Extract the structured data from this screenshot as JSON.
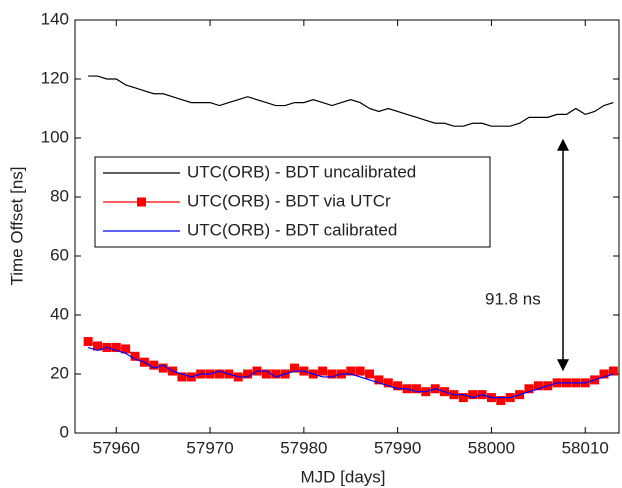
{
  "chart_data": {
    "type": "line",
    "xlabel": "MJD [days]",
    "ylabel": "Time Offset [ns]",
    "annotation": "91.8 ns",
    "x": [
      57957,
      57958,
      57959,
      57960,
      57961,
      57962,
      57963,
      57964,
      57965,
      57966,
      57967,
      57968,
      57969,
      57970,
      57971,
      57972,
      57973,
      57974,
      57975,
      57976,
      57977,
      57978,
      57979,
      57980,
      57981,
      57982,
      57983,
      57984,
      57985,
      57986,
      57987,
      57988,
      57989,
      57990,
      57991,
      57992,
      57993,
      57994,
      57995,
      57996,
      57997,
      57998,
      57999,
      58000,
      58001,
      58002,
      58003,
      58004,
      58005,
      58006,
      58007,
      58008,
      58009,
      58010,
      58011,
      58012,
      58013
    ],
    "series": [
      {
        "name": "UTC(ORB) - BDT uncalibrated",
        "color": "#000000",
        "marker": "none",
        "values": [
          121,
          121,
          120,
          120,
          118,
          117,
          116,
          115,
          115,
          114,
          113,
          112,
          112,
          112,
          111,
          112,
          113,
          114,
          113,
          112,
          111,
          111,
          112,
          112,
          113,
          112,
          111,
          112,
          113,
          112,
          110,
          109,
          110,
          109,
          108,
          107,
          106,
          105,
          105,
          104,
          104,
          105,
          105,
          104,
          104,
          104,
          105,
          107,
          107,
          107,
          108,
          108,
          110,
          108,
          109,
          111,
          112
        ]
      },
      {
        "name": "UTC(ORB) - BDT via UTCr",
        "color": "#ff0000",
        "marker": "square",
        "values": [
          31,
          29.5,
          29,
          29,
          28.5,
          26,
          24,
          23,
          22,
          21,
          19,
          19,
          20,
          20,
          20,
          20,
          19,
          20,
          21,
          20,
          20,
          20,
          22,
          21,
          20,
          21,
          20,
          20,
          21,
          21,
          20,
          18,
          17,
          16,
          15,
          15,
          14,
          15,
          14,
          13,
          12,
          13,
          13,
          12,
          11,
          12,
          13,
          15,
          16,
          16,
          17,
          17,
          17,
          17,
          18,
          20,
          21
        ]
      },
      {
        "name": "UTC(ORB) - BDT calibrated",
        "color": "#0000ff",
        "marker": "none",
        "values": [
          29,
          28,
          29,
          28,
          27,
          25,
          24,
          22,
          23,
          21,
          20,
          19,
          20,
          20,
          21,
          20,
          19,
          19,
          21,
          21,
          19,
          20,
          21,
          21,
          20,
          19,
          19,
          20,
          20,
          19,
          18,
          17,
          16,
          15,
          15,
          14,
          14,
          15,
          14,
          13,
          13,
          12,
          13,
          12,
          12,
          12,
          13,
          14,
          15,
          16,
          17,
          17,
          17,
          17,
          18,
          19,
          20
        ]
      }
    ],
    "xlim": [
      57955.6,
      58013.6
    ],
    "xticks": [
      57960,
      57970,
      57980,
      57990,
      58000,
      58010
    ],
    "ylim": [
      0,
      140
    ],
    "yticks": [
      0,
      20,
      40,
      60,
      80,
      100,
      120,
      140
    ],
    "legend": "upper left"
  }
}
